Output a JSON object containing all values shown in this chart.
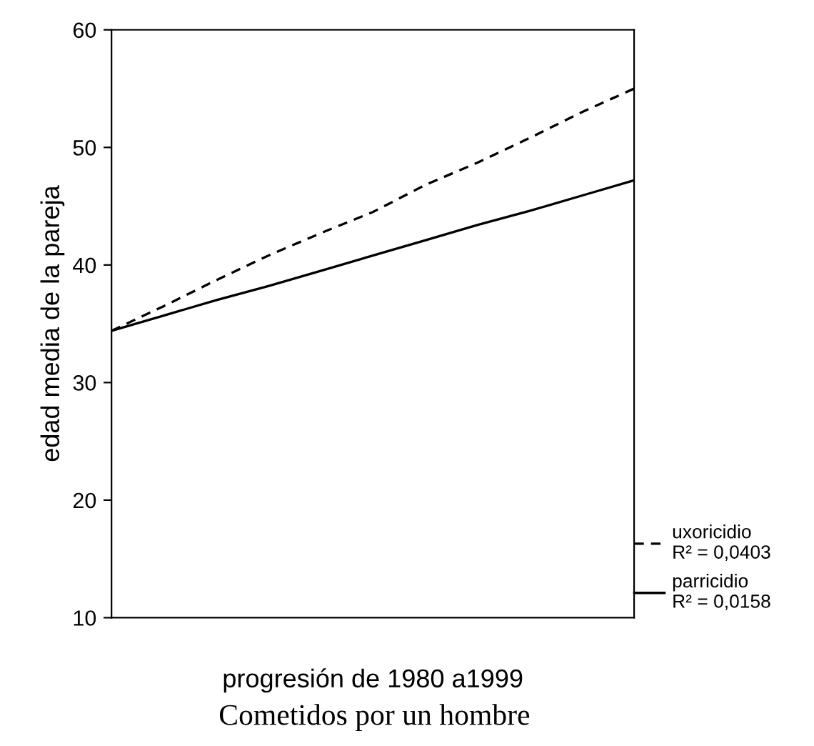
{
  "chart_data": {
    "type": "line",
    "title": "Cometidos por un hombre",
    "xlabel": "progresión de 1980 a1999",
    "ylabel": "edad media de la pareja",
    "categories": [
      null,
      null,
      null,
      null,
      null,
      null,
      null,
      null,
      null,
      null,
      null
    ],
    "series": [
      {
        "name": "uxoricidio\nR² = 0,0403",
        "color": "#000000",
        "line_style": "dashed",
        "values": [
          34.4,
          36.5,
          38.7,
          40.8,
          42.7,
          44.5,
          46.8,
          48.7,
          50.8,
          53.0,
          55.0
        ]
      },
      {
        "name": "parricidio\nR² = 0,0158",
        "color": "#000000",
        "line_style": "solid",
        "values": [
          34.4,
          35.7,
          37.0,
          38.2,
          39.5,
          40.8,
          42.1,
          43.4,
          44.6,
          45.9,
          47.2
        ]
      }
    ],
    "ylim": [
      10,
      60
    ],
    "yticks": [
      10,
      20,
      30,
      40,
      50,
      60
    ],
    "grid": false,
    "legend": "bottom right",
    "marker": "none"
  }
}
